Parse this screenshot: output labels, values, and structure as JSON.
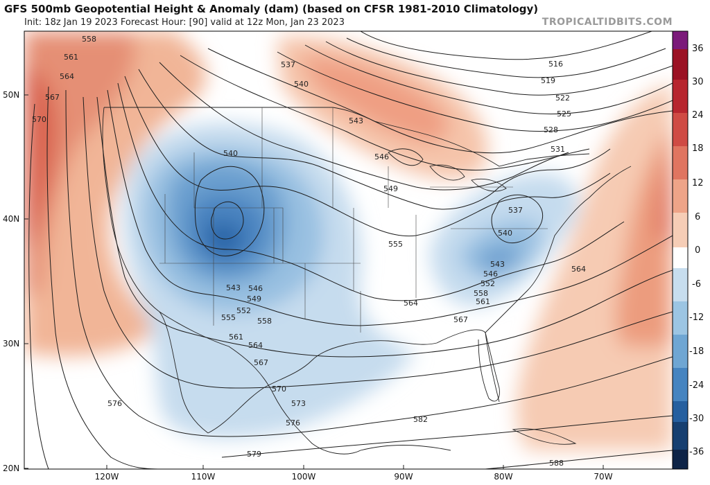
{
  "header": {
    "title": "GFS 500mb Geopotential Height & Anomaly (dam) (based on CFSR 1981-2010 Climatology)",
    "subtitle": "Init: 18z Jan 19 2023   Forecast Hour: [90]   valid at 12z Mon, Jan 23 2023",
    "brand": "TROPICALTIDBITS.COM"
  },
  "map": {
    "lat_labels": [
      "50N",
      "40N",
      "30N",
      "20N"
    ],
    "lon_labels": [
      "120W",
      "110W",
      "100W",
      "90W",
      "80W",
      "70W"
    ],
    "contour_labels": [
      {
        "text": "558"
      },
      {
        "text": "561"
      },
      {
        "text": "564"
      },
      {
        "text": "567"
      },
      {
        "text": "570"
      },
      {
        "text": "537"
      },
      {
        "text": "540"
      },
      {
        "text": "543"
      },
      {
        "text": "546"
      },
      {
        "text": "549"
      },
      {
        "text": "516"
      },
      {
        "text": "519"
      },
      {
        "text": "522"
      },
      {
        "text": "525"
      },
      {
        "text": "528"
      },
      {
        "text": "531"
      },
      {
        "text": "540"
      },
      {
        "text": "537"
      },
      {
        "text": "540"
      },
      {
        "text": "543"
      },
      {
        "text": "546"
      },
      {
        "text": "549"
      },
      {
        "text": "552"
      },
      {
        "text": "555"
      },
      {
        "text": "558"
      },
      {
        "text": "561"
      },
      {
        "text": "564"
      },
      {
        "text": "567"
      },
      {
        "text": "555"
      },
      {
        "text": "564"
      },
      {
        "text": "567"
      },
      {
        "text": "543"
      },
      {
        "text": "546"
      },
      {
        "text": "552"
      },
      {
        "text": "558"
      },
      {
        "text": "561"
      },
      {
        "text": "564"
      },
      {
        "text": "570"
      },
      {
        "text": "573"
      },
      {
        "text": "576"
      },
      {
        "text": "576"
      },
      {
        "text": "579"
      },
      {
        "text": "582"
      },
      {
        "text": "588"
      }
    ]
  },
  "colorbar": {
    "labels": [
      "36",
      "30",
      "24",
      "18",
      "12",
      "6",
      "0",
      "-6",
      "-12",
      "-18",
      "-24",
      "-30",
      "-36"
    ],
    "colors": [
      "#7b1a7a",
      "#9b1224",
      "#b7262e",
      "#cf4b44",
      "#e07560",
      "#eea488",
      "#f6cdb6",
      "#ffffff",
      "#c7ddee",
      "#9cc5e3",
      "#6fa6d3",
      "#4684c0",
      "#265f9f",
      "#173f70",
      "#0e2447"
    ]
  }
}
